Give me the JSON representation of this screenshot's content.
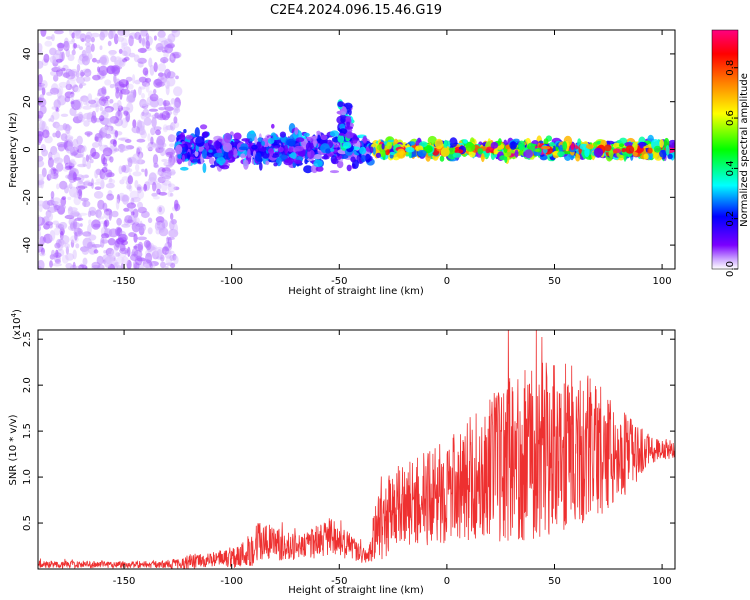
{
  "figure": {
    "title": "C2E4.2024.096.15.46.G19"
  },
  "chart_data": [
    {
      "type": "heatmap",
      "xlabel": "Height of straight line (km)",
      "ylabel": "Frequency (Hz)",
      "xlim": [
        -190,
        106
      ],
      "ylim": [
        -50,
        50
      ],
      "xticks": [
        -150,
        -100,
        -50,
        0,
        50,
        100
      ],
      "yticks": [
        -40,
        -20,
        0,
        20,
        40
      ],
      "colorbar": {
        "label": "Normalized spectral amplitude",
        "range": [
          0.0,
          0.95
        ],
        "ticks": [
          "0.0",
          "0.2",
          "0.4",
          "0.6",
          "0.8"
        ],
        "colormap": [
          "#ffffff",
          "#cda8ff",
          "#7b00ff",
          "#0000ff",
          "#00ffff",
          "#00ff00",
          "#ffff00",
          "#ff8000",
          "#ff0000",
          "#ff0080"
        ]
      },
      "description_of_regions": [
        {
          "x_range": [
            -190,
            -125
          ],
          "frequency_spread": [
            -50,
            50
          ],
          "amplitude": 0.15
        },
        {
          "x_range": [
            -125,
            -35
          ],
          "frequency_spread": [
            -8,
            8
          ],
          "amplitude": 0.35
        },
        {
          "x_range": [
            -50,
            -45
          ],
          "frequency_spread": [
            0,
            20
          ],
          "amplitude": 0.4
        },
        {
          "x_range": [
            -35,
            106
          ],
          "frequency_spread": [
            -4,
            4
          ],
          "amplitude": 0.6
        }
      ]
    },
    {
      "type": "line",
      "xlabel": "Height of straight line (km)",
      "ylabel": "SNR (10 * v/v)",
      "yscale_label": "(x10",
      "yscale_exp": "4",
      "yscale_close": ")",
      "xlim": [
        -190,
        106
      ],
      "ylim": [
        0,
        26000
      ],
      "xticks": [
        -150,
        -100,
        -50,
        0,
        50,
        100
      ],
      "yticks": [
        0.5,
        1.0,
        1.5,
        2.0,
        2.5
      ],
      "ytick_labels": [
        "0.5",
        "1.0",
        "1.5",
        "2.0",
        "2.5"
      ],
      "series": [
        {
          "color": "#ee3030",
          "envelope": [
            {
              "x": -190,
              "mean": 500,
              "amp": 400
            },
            {
              "x": -130,
              "mean": 500,
              "amp": 400
            },
            {
              "x": -118,
              "mean": 800,
              "amp": 900
            },
            {
              "x": -110,
              "mean": 1000,
              "amp": 700
            },
            {
              "x": -95,
              "mean": 1500,
              "amp": 1500
            },
            {
              "x": -87,
              "mean": 3000,
              "amp": 2500
            },
            {
              "x": -75,
              "mean": 2500,
              "amp": 1500
            },
            {
              "x": -65,
              "mean": 2500,
              "amp": 1500
            },
            {
              "x": -55,
              "mean": 3500,
              "amp": 2200
            },
            {
              "x": -45,
              "mean": 2500,
              "amp": 1500
            },
            {
              "x": -37,
              "mean": 1200,
              "amp": 700
            },
            {
              "x": -33,
              "mean": 4000,
              "amp": 3500
            },
            {
              "x": -25,
              "mean": 6500,
              "amp": 4500
            },
            {
              "x": -10,
              "mean": 7500,
              "amp": 5000
            },
            {
              "x": 5,
              "mean": 9000,
              "amp": 6000
            },
            {
              "x": 20,
              "mean": 11000,
              "amp": 8000
            },
            {
              "x": 38,
              "mean": 13000,
              "amp": 10000
            },
            {
              "x": 55,
              "mean": 13500,
              "amp": 9500
            },
            {
              "x": 70,
              "mean": 13000,
              "amp": 7500
            },
            {
              "x": 85,
              "mean": 12500,
              "amp": 4000
            },
            {
              "x": 95,
              "mean": 13000,
              "amp": 1500
            },
            {
              "x": 106,
              "mean": 13000,
              "amp": 1000
            }
          ]
        }
      ]
    }
  ]
}
